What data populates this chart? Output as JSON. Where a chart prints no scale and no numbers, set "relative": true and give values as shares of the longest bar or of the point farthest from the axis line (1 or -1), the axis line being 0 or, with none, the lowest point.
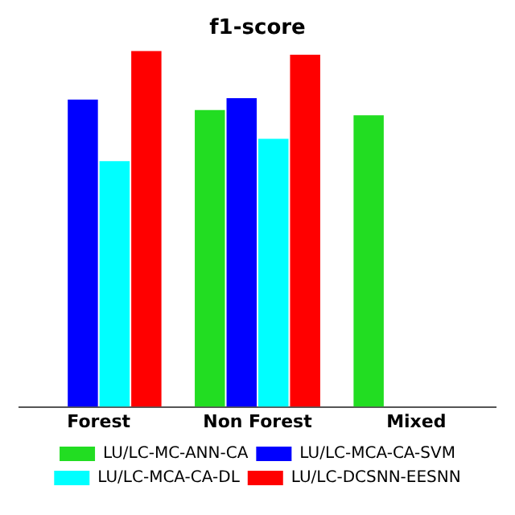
{
  "chart_data": {
    "type": "bar",
    "title": "f1-score",
    "relative": true,
    "categories": [
      "Forest",
      "Non Forest",
      "Mixed"
    ],
    "series": [
      {
        "name": "LU/LC-MC-ANN-CA",
        "color": "#22dd22",
        "values": [
          null,
          0.834,
          0.819
        ]
      },
      {
        "name": "LU/LC-MCA-CA-SVM",
        "color": "#0000ff",
        "values": [
          0.863,
          0.867,
          null
        ]
      },
      {
        "name": "LU/LC-MCA-CA-DL",
        "color": "#00ffff",
        "values": [
          0.69,
          0.753,
          null
        ]
      },
      {
        "name": "LU/LC-DCSNN-EESNN",
        "color": "#ff0000",
        "values": [
          1,
          0.989,
          null
        ]
      }
    ],
    "legend": "bottom",
    "grid": false
  }
}
